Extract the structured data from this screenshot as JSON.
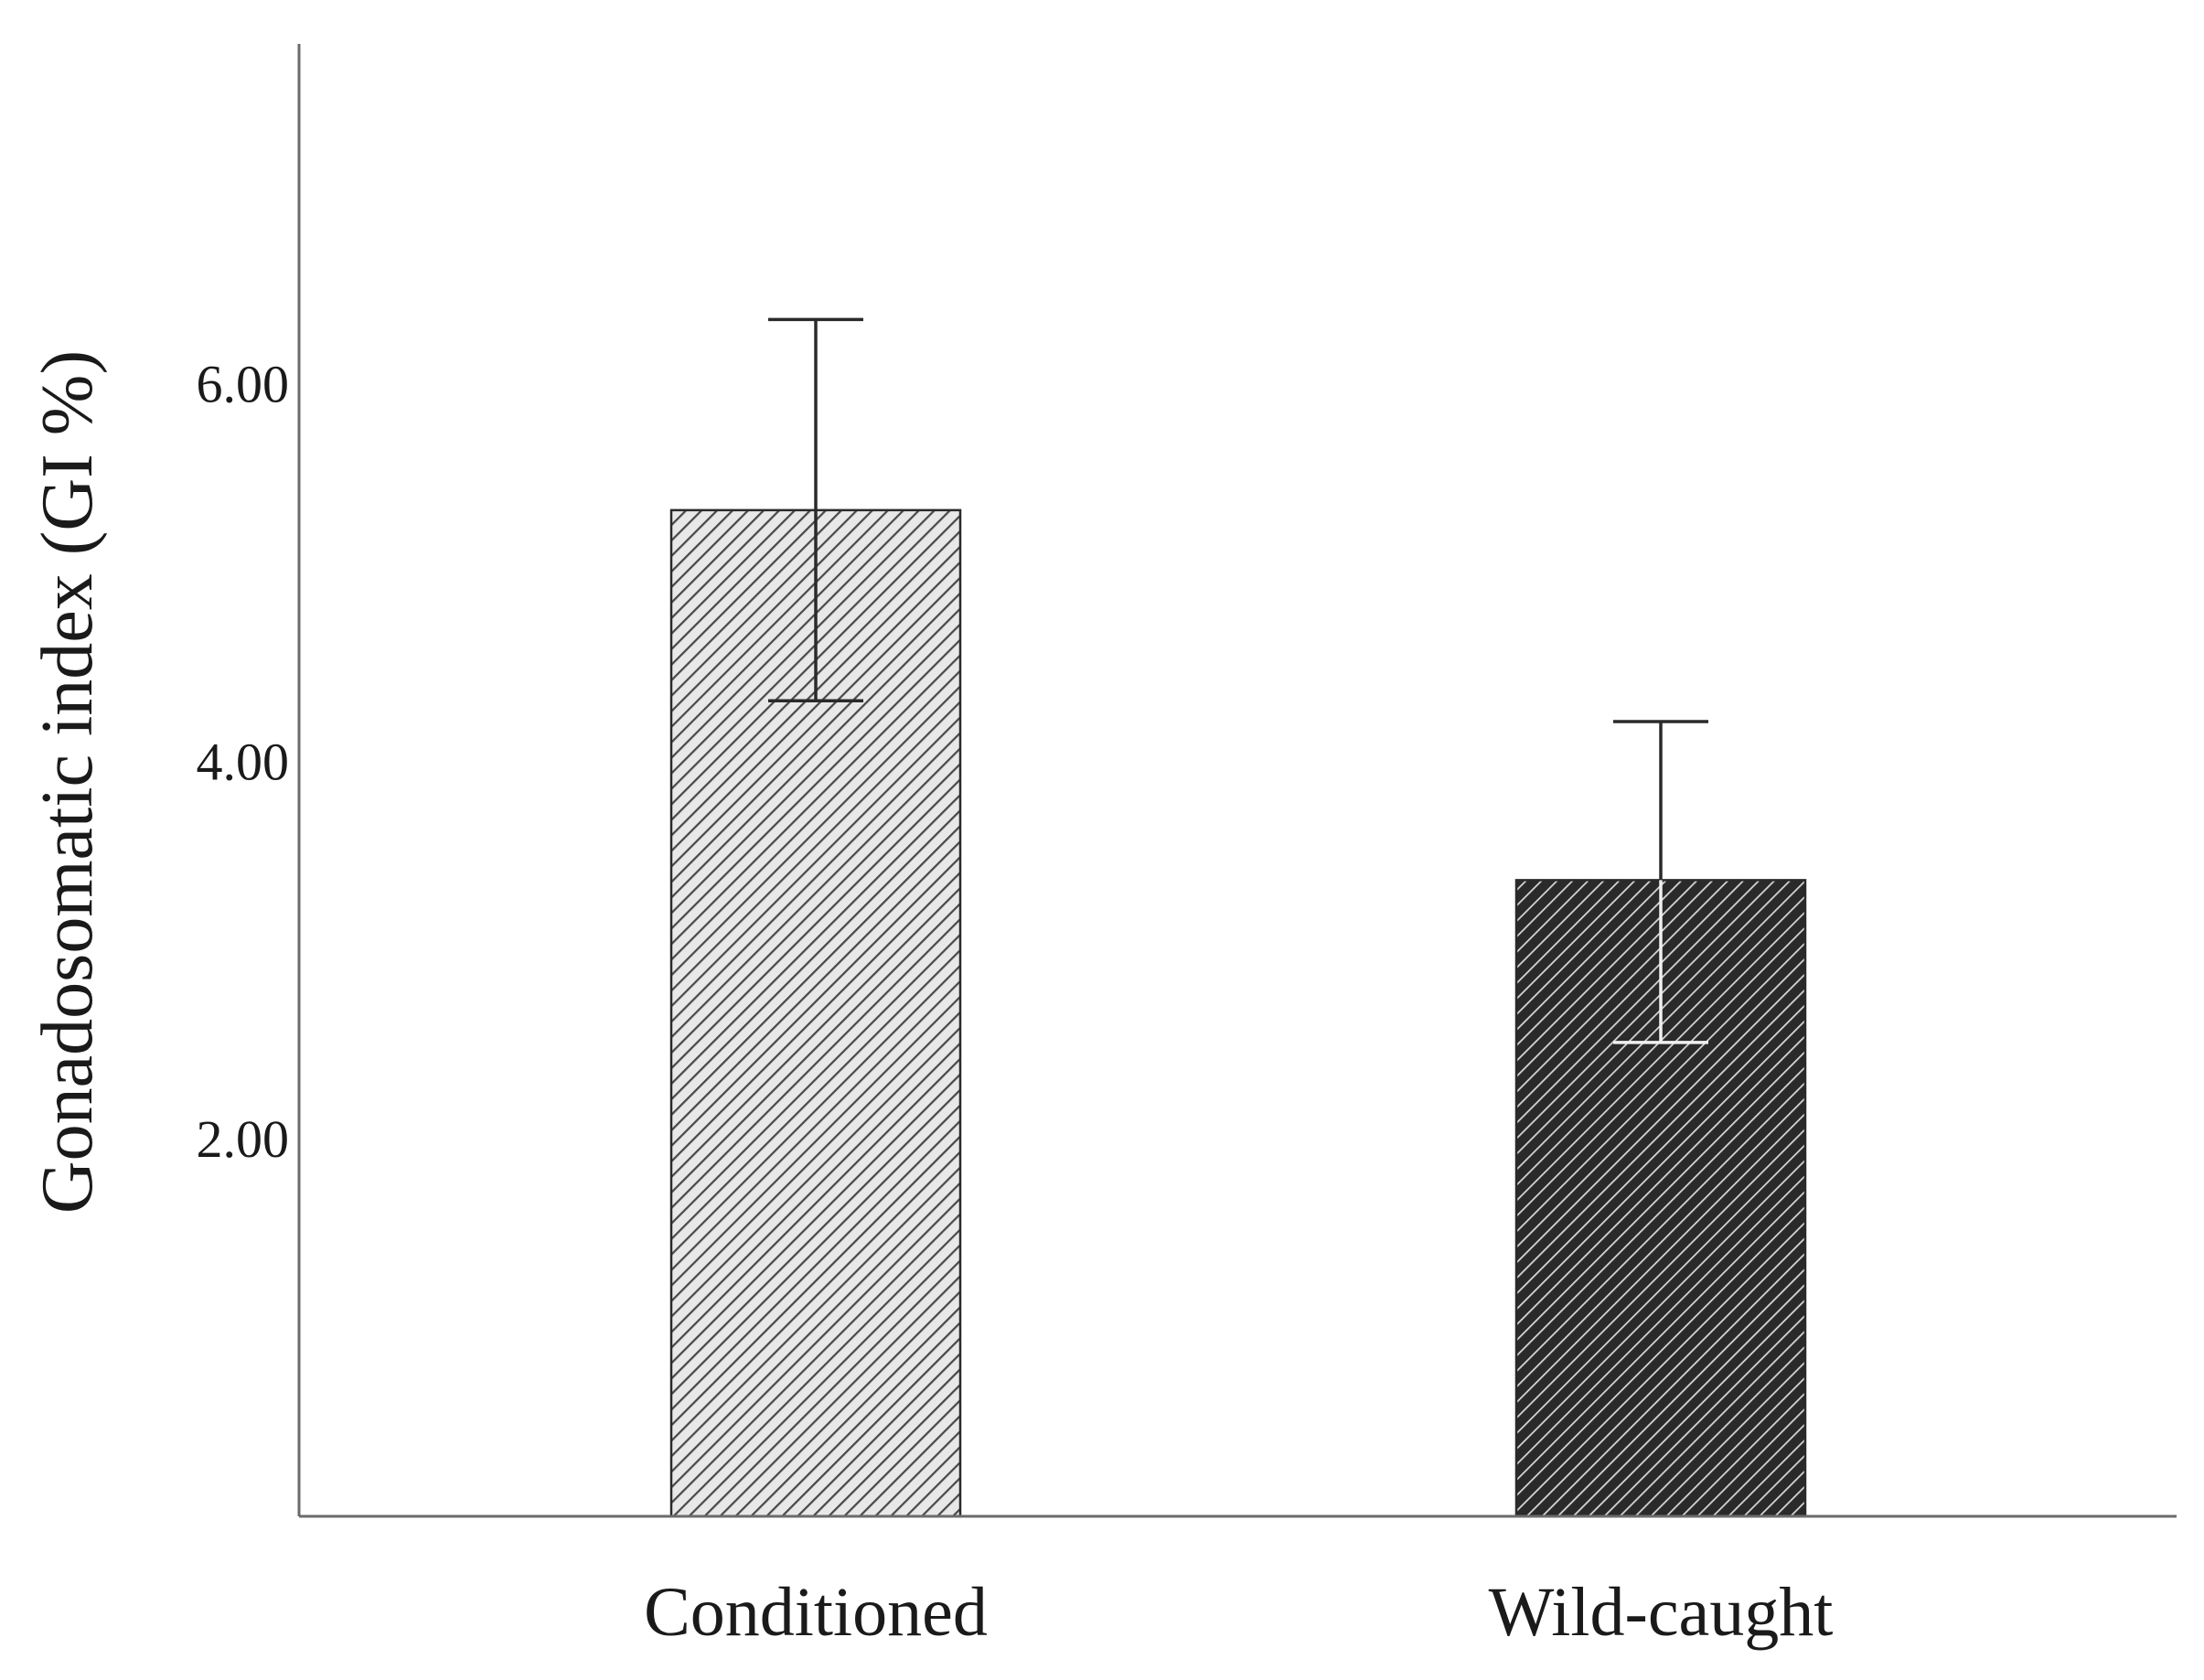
{
  "chart_data": {
    "type": "bar",
    "title": "",
    "xlabel": "",
    "ylabel": "Gonadosomatic index  (GI %)",
    "categories": [
      "Conditioned",
      "Wild-caught"
    ],
    "values": [
      5.33,
      3.37
    ],
    "error_bars": [
      {
        "lower": 4.32,
        "upper": 6.34
      },
      {
        "lower": 2.51,
        "upper": 4.21
      }
    ],
    "ylim": [
      0,
      7.8
    ],
    "yticks": [
      2.0,
      4.0,
      6.0
    ],
    "ytick_labels": [
      "2.00",
      "4.00",
      "6.00"
    ],
    "grid": false,
    "legend": "none",
    "bar_fill": "hatched",
    "colors": {
      "axis": "#6b6b6b",
      "bar_light_bg": "#e8e8e8",
      "bar_light_hatch": "#4a4a4a",
      "bar_dark_bg": "#2a2a2a",
      "bar_dark_hatch": "#d8d8d8",
      "error_bar": "#2a2a2a",
      "error_bar_inside_dark": "#f0f0f0"
    }
  }
}
